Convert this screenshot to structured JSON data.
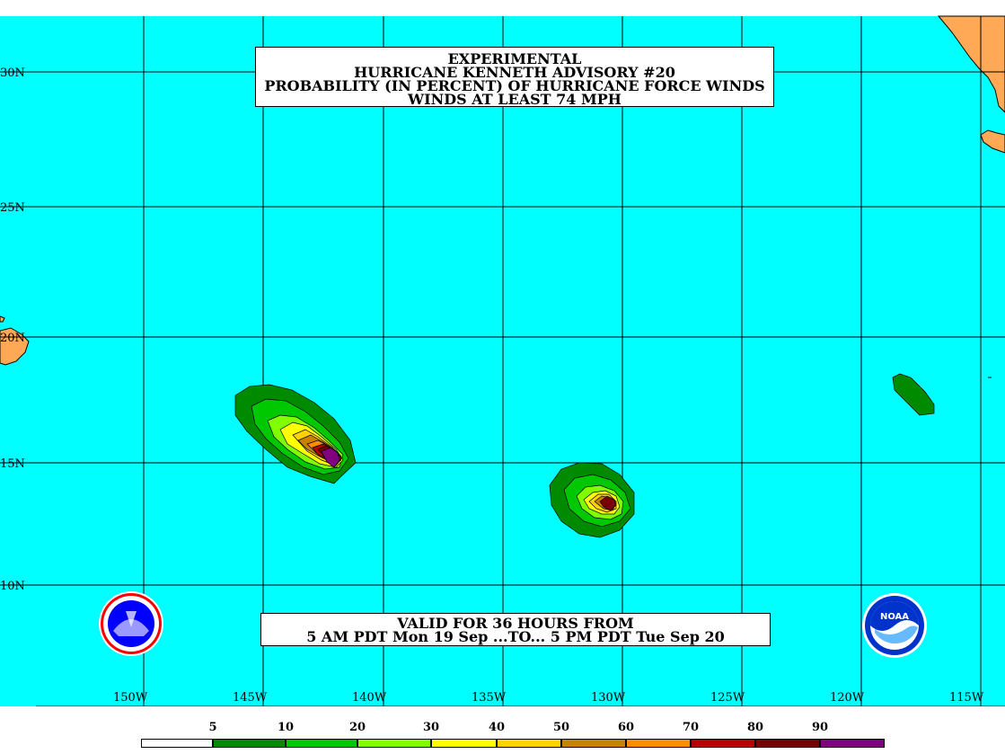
{
  "title": {
    "line1": "EXPERIMENTAL",
    "line2": "HURRICANE KENNETH ADVISORY #20",
    "line3": "PROBABILITY (IN PERCENT) OF HURRICANE FORCE WINDS",
    "line4": "WINDS AT LEAST 74 MPH"
  },
  "valid": {
    "line1": "VALID FOR 36 HOURS FROM",
    "line2": "5 AM PDT Mon 19 Sep ...TO... 5 PM PDT Tue Sep 20"
  },
  "lat_labels": [
    "30N",
    "25N",
    "20N",
    "15N",
    "10N"
  ],
  "lon_labels": [
    "150W",
    "145W",
    "140W",
    "135W",
    "130W",
    "125W",
    "120W",
    "115W"
  ],
  "legend": {
    "labels": [
      "5",
      "10",
      "20",
      "30",
      "40",
      "50",
      "60",
      "70",
      "80",
      "90"
    ],
    "colors": [
      "#ffffff",
      "#008a00",
      "#00c800",
      "#80ff00",
      "#ffff00",
      "#ffd200",
      "#c88200",
      "#ff8c00",
      "#b40000",
      "#780000",
      "#800080"
    ]
  },
  "colors": {
    "ocean": "#00ffff",
    "land": "#ffa855",
    "grid": "#000000"
  },
  "logos": {
    "left": "nws-logo",
    "right": "noaa-logo",
    "noaa_text": "NOAA"
  }
}
